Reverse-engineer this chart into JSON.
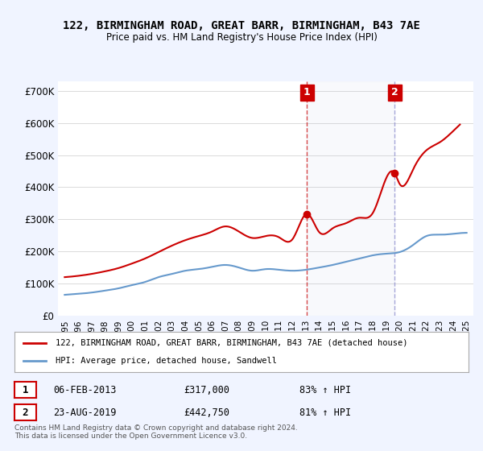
{
  "title": "122, BIRMINGHAM ROAD, GREAT BARR, BIRMINGHAM, B43 7AE",
  "subtitle": "Price paid vs. HM Land Registry's House Price Index (HPI)",
  "background_color": "#f0f4ff",
  "plot_bg_color": "#ffffff",
  "hpi_line_color": "#6699cc",
  "price_line_color": "#cc0000",
  "ylabel_ticks": [
    "£0",
    "£100K",
    "£200K",
    "£300K",
    "£400K",
    "£500K",
    "£600K",
    "£700K"
  ],
  "ytick_values": [
    0,
    100000,
    200000,
    300000,
    400000,
    500000,
    600000,
    700000
  ],
  "ylim": [
    0,
    730000
  ],
  "xlim_start": 1995.0,
  "xlim_end": 2025.5,
  "sale1_x": 2013.09,
  "sale1_y": 317000,
  "sale1_label": "1",
  "sale1_date": "06-FEB-2013",
  "sale1_price": "£317,000",
  "sale1_hpi": "83% ↑ HPI",
  "sale2_x": 2019.64,
  "sale2_y": 442750,
  "sale2_label": "2",
  "sale2_date": "23-AUG-2019",
  "sale2_price": "£442,750",
  "sale2_hpi": "81% ↑ HPI",
  "legend_line1": "122, BIRMINGHAM ROAD, GREAT BARR, BIRMINGHAM, B43 7AE (detached house)",
  "legend_line2": "HPI: Average price, detached house, Sandwell",
  "footer": "Contains HM Land Registry data © Crown copyright and database right 2024.\nThis data is licensed under the Open Government Licence v3.0.",
  "xtick_years": [
    1995,
    1996,
    1997,
    1998,
    1999,
    2000,
    2001,
    2002,
    2003,
    2004,
    2005,
    2006,
    2007,
    2008,
    2009,
    2010,
    2011,
    2012,
    2013,
    2014,
    2015,
    2016,
    2017,
    2018,
    2019,
    2020,
    2021,
    2022,
    2023,
    2024,
    2025
  ]
}
